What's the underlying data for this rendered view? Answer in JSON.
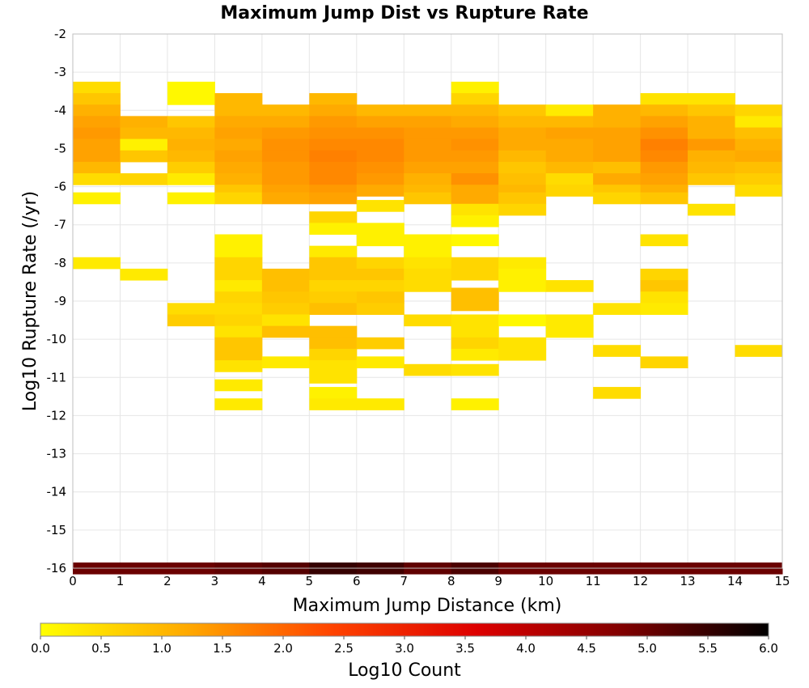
{
  "chart_data": {
    "type": "heatmap",
    "title": "Maximum Jump Dist vs Rupture Rate",
    "xlabel": "Maximum Jump Distance (km)",
    "ylabel": "Log10 Rupture Rate (/yr)",
    "xlim": [
      0,
      15
    ],
    "ylim": [
      -16,
      -2
    ],
    "x_ticks": [
      "0",
      "1",
      "2",
      "3",
      "4",
      "5",
      "6",
      "7",
      "8",
      "9",
      "10",
      "11",
      "12",
      "13",
      "14",
      "15"
    ],
    "y_ticks": [
      "-2",
      "-3",
      "-4",
      "-5",
      "-6",
      "-7",
      "-8",
      "-9",
      "-10",
      "-11",
      "-12",
      "-13",
      "-14",
      "-15",
      "-16"
    ],
    "bin_width_x": 1,
    "bin_height_y": 0.3,
    "grid": true,
    "colorbar": {
      "label": "Log10 Count",
      "range": [
        0,
        6
      ],
      "ticks": [
        "0.0",
        "0.5",
        "1.0",
        "1.5",
        "2.0",
        "2.5",
        "3.0",
        "3.5",
        "4.0",
        "4.5",
        "5.0",
        "5.5",
        "6.0"
      ],
      "colors": [
        "#ffff00",
        "#ffaa00",
        "#ff4400",
        "#dd0000",
        "#800000",
        "#000000"
      ]
    },
    "columns": [
      {
        "x": 0,
        "cells": [
          [
            -3.4,
            0.5
          ],
          [
            -3.7,
            0.8
          ],
          [
            -4.0,
            1.1
          ],
          [
            -4.3,
            1.3
          ],
          [
            -4.6,
            1.4
          ],
          [
            -4.9,
            1.3
          ],
          [
            -5.2,
            1.3
          ],
          [
            -5.5,
            1.0
          ],
          [
            -5.8,
            0.5
          ],
          [
            -6.3,
            0.2
          ],
          [
            -8.0,
            0.3
          ],
          [
            -16.0,
            5.0
          ]
        ]
      },
      {
        "x": 1,
        "cells": [
          [
            -4.3,
            1.1
          ],
          [
            -4.6,
            1.0
          ],
          [
            -4.9,
            0.2
          ],
          [
            -5.2,
            0.8
          ],
          [
            -5.8,
            0.6
          ],
          [
            -8.3,
            0.3
          ],
          [
            -16.0,
            5.0
          ]
        ]
      },
      {
        "x": 2,
        "cells": [
          [
            -3.4,
            0.1
          ],
          [
            -3.7,
            0.1
          ],
          [
            -4.3,
            0.8
          ],
          [
            -4.6,
            1.0
          ],
          [
            -4.9,
            1.1
          ],
          [
            -5.2,
            1.0
          ],
          [
            -5.5,
            0.7
          ],
          [
            -5.8,
            0.3
          ],
          [
            -6.3,
            0.2
          ],
          [
            -9.2,
            0.5
          ],
          [
            -9.5,
            0.7
          ],
          [
            -16.0,
            5.0
          ]
        ]
      },
      {
        "x": 3,
        "cells": [
          [
            -3.7,
            1.0
          ],
          [
            -4.0,
            1.0
          ],
          [
            -4.3,
            1.2
          ],
          [
            -4.6,
            1.3
          ],
          [
            -4.9,
            1.2
          ],
          [
            -5.2,
            1.3
          ],
          [
            -5.5,
            1.2
          ],
          [
            -5.8,
            1.1
          ],
          [
            -6.1,
            0.8
          ],
          [
            -6.3,
            0.6
          ],
          [
            -7.4,
            0.2
          ],
          [
            -7.7,
            0.2
          ],
          [
            -8.0,
            0.6
          ],
          [
            -8.3,
            0.6
          ],
          [
            -8.6,
            0.3
          ],
          [
            -8.9,
            0.6
          ],
          [
            -9.2,
            0.5
          ],
          [
            -9.5,
            0.6
          ],
          [
            -9.8,
            0.4
          ],
          [
            -10.1,
            0.8
          ],
          [
            -10.4,
            0.8
          ],
          [
            -10.7,
            0.4
          ],
          [
            -11.2,
            0.3
          ],
          [
            -11.7,
            0.3
          ],
          [
            -16.0,
            5.1
          ]
        ]
      },
      {
        "x": 4,
        "cells": [
          [
            -4.0,
            1.0
          ],
          [
            -4.3,
            1.2
          ],
          [
            -4.6,
            1.4
          ],
          [
            -4.9,
            1.5
          ],
          [
            -5.2,
            1.5
          ],
          [
            -5.5,
            1.4
          ],
          [
            -5.8,
            1.4
          ],
          [
            -6.1,
            1.3
          ],
          [
            -6.3,
            1.2
          ],
          [
            -8.3,
            0.9
          ],
          [
            -8.6,
            0.9
          ],
          [
            -8.9,
            0.8
          ],
          [
            -9.2,
            0.7
          ],
          [
            -9.5,
            0.4
          ],
          [
            -9.8,
            0.9
          ],
          [
            -10.6,
            0.3
          ],
          [
            -16.0,
            5.2
          ]
        ]
      },
      {
        "x": 5,
        "cells": [
          [
            -3.7,
            1.0
          ],
          [
            -4.0,
            1.2
          ],
          [
            -4.3,
            1.4
          ],
          [
            -4.6,
            1.5
          ],
          [
            -4.9,
            1.6
          ],
          [
            -5.2,
            1.7
          ],
          [
            -5.5,
            1.6
          ],
          [
            -5.8,
            1.6
          ],
          [
            -6.1,
            1.4
          ],
          [
            -6.3,
            1.3
          ],
          [
            -6.8,
            0.6
          ],
          [
            -7.1,
            0.2
          ],
          [
            -7.7,
            0.3
          ],
          [
            -8.0,
            0.8
          ],
          [
            -8.3,
            0.8
          ],
          [
            -8.6,
            0.6
          ],
          [
            -8.9,
            0.7
          ],
          [
            -9.2,
            0.9
          ],
          [
            -9.8,
            0.9
          ],
          [
            -10.1,
            0.9
          ],
          [
            -10.4,
            0.6
          ],
          [
            -10.7,
            0.4
          ],
          [
            -11.0,
            0.4
          ],
          [
            -11.4,
            0.2
          ],
          [
            -11.7,
            0.3
          ],
          [
            -16.0,
            5.5
          ]
        ]
      },
      {
        "x": 6,
        "cells": [
          [
            -4.0,
            1.0
          ],
          [
            -4.3,
            1.3
          ],
          [
            -4.6,
            1.5
          ],
          [
            -4.9,
            1.6
          ],
          [
            -5.2,
            1.6
          ],
          [
            -5.5,
            1.5
          ],
          [
            -5.8,
            1.4
          ],
          [
            -6.1,
            1.2
          ],
          [
            -6.5,
            0.4
          ],
          [
            -7.1,
            0.2
          ],
          [
            -7.4,
            0.2
          ],
          [
            -8.0,
            0.6
          ],
          [
            -8.3,
            0.8
          ],
          [
            -8.6,
            0.6
          ],
          [
            -8.9,
            0.8
          ],
          [
            -9.2,
            0.7
          ],
          [
            -10.1,
            0.7
          ],
          [
            -10.6,
            0.3
          ],
          [
            -11.7,
            0.3
          ],
          [
            -16.0,
            5.4
          ]
        ]
      },
      {
        "x": 7,
        "cells": [
          [
            -4.0,
            1.0
          ],
          [
            -4.3,
            1.3
          ],
          [
            -4.6,
            1.4
          ],
          [
            -4.9,
            1.4
          ],
          [
            -5.2,
            1.4
          ],
          [
            -5.5,
            1.3
          ],
          [
            -5.8,
            1.1
          ],
          [
            -6.1,
            1.0
          ],
          [
            -6.3,
            0.8
          ],
          [
            -7.4,
            0.2
          ],
          [
            -7.7,
            0.2
          ],
          [
            -8.0,
            0.4
          ],
          [
            -8.3,
            0.5
          ],
          [
            -8.6,
            0.5
          ],
          [
            -9.5,
            0.5
          ],
          [
            -10.8,
            0.5
          ],
          [
            -16.0,
            5.1
          ]
        ]
      },
      {
        "x": 8,
        "cells": [
          [
            -3.4,
            0.2
          ],
          [
            -3.7,
            0.6
          ],
          [
            -4.0,
            1.0
          ],
          [
            -4.3,
            1.2
          ],
          [
            -4.6,
            1.4
          ],
          [
            -4.9,
            1.5
          ],
          [
            -5.2,
            1.4
          ],
          [
            -5.5,
            1.3
          ],
          [
            -5.8,
            1.5
          ],
          [
            -6.1,
            1.2
          ],
          [
            -6.3,
            1.2
          ],
          [
            -6.6,
            0.4
          ],
          [
            -6.9,
            0.2
          ],
          [
            -7.4,
            0.1
          ],
          [
            -8.0,
            0.6
          ],
          [
            -8.3,
            0.6
          ],
          [
            -8.8,
            0.9
          ],
          [
            -9.1,
            0.9
          ],
          [
            -9.5,
            0.4
          ],
          [
            -9.8,
            0.4
          ],
          [
            -10.1,
            0.6
          ],
          [
            -10.4,
            0.3
          ],
          [
            -10.8,
            0.4
          ],
          [
            -11.7,
            0.2
          ],
          [
            -16.0,
            5.3
          ]
        ]
      },
      {
        "x": 9,
        "cells": [
          [
            -4.0,
            0.8
          ],
          [
            -4.3,
            1.0
          ],
          [
            -4.6,
            1.2
          ],
          [
            -4.9,
            1.2
          ],
          [
            -5.2,
            1.0
          ],
          [
            -5.5,
            0.8
          ],
          [
            -5.8,
            0.9
          ],
          [
            -6.1,
            1.0
          ],
          [
            -6.3,
            0.8
          ],
          [
            -6.6,
            0.6
          ],
          [
            -8.0,
            0.3
          ],
          [
            -8.3,
            0.2
          ],
          [
            -8.6,
            0.2
          ],
          [
            -9.5,
            0.1
          ],
          [
            -10.1,
            0.4
          ],
          [
            -10.4,
            0.4
          ],
          [
            -16.0,
            5.0
          ]
        ]
      },
      {
        "x": 10,
        "cells": [
          [
            -4.0,
            0.3
          ],
          [
            -4.3,
            1.0
          ],
          [
            -4.6,
            1.3
          ],
          [
            -4.9,
            1.2
          ],
          [
            -5.2,
            1.2
          ],
          [
            -5.5,
            1.0
          ],
          [
            -5.8,
            0.5
          ],
          [
            -6.1,
            0.6
          ],
          [
            -8.6,
            0.4
          ],
          [
            -9.5,
            0.3
          ],
          [
            -9.8,
            0.3
          ],
          [
            -16.0,
            5.0
          ]
        ]
      },
      {
        "x": 11,
        "cells": [
          [
            -4.0,
            1.1
          ],
          [
            -4.3,
            1.1
          ],
          [
            -4.6,
            1.3
          ],
          [
            -4.9,
            1.3
          ],
          [
            -5.2,
            1.3
          ],
          [
            -5.5,
            0.9
          ],
          [
            -5.8,
            1.2
          ],
          [
            -6.1,
            0.8
          ],
          [
            -6.3,
            0.6
          ],
          [
            -9.2,
            0.4
          ],
          [
            -10.3,
            0.5
          ],
          [
            -11.4,
            0.5
          ],
          [
            -16.0,
            5.0
          ]
        ]
      },
      {
        "x": 12,
        "cells": [
          [
            -3.7,
            0.4
          ],
          [
            -4.0,
            1.0
          ],
          [
            -4.3,
            1.3
          ],
          [
            -4.6,
            1.5
          ],
          [
            -4.9,
            1.7
          ],
          [
            -5.2,
            1.6
          ],
          [
            -5.5,
            1.4
          ],
          [
            -5.8,
            1.3
          ],
          [
            -6.1,
            1.1
          ],
          [
            -6.3,
            0.8
          ],
          [
            -7.4,
            0.4
          ],
          [
            -8.3,
            0.6
          ],
          [
            -8.6,
            0.8
          ],
          [
            -8.9,
            0.4
          ],
          [
            -9.2,
            0.3
          ],
          [
            -10.6,
            0.6
          ],
          [
            -16.0,
            5.0
          ]
        ]
      },
      {
        "x": 13,
        "cells": [
          [
            -3.7,
            0.4
          ],
          [
            -4.0,
            0.8
          ],
          [
            -4.3,
            1.1
          ],
          [
            -4.6,
            1.1
          ],
          [
            -4.9,
            1.4
          ],
          [
            -5.2,
            1.1
          ],
          [
            -5.5,
            1.0
          ],
          [
            -5.8,
            0.8
          ],
          [
            -6.6,
            0.4
          ],
          [
            -16.0,
            5.0
          ]
        ]
      },
      {
        "x": 14,
        "cells": [
          [
            -4.0,
            0.6
          ],
          [
            -4.3,
            0.3
          ],
          [
            -4.6,
            0.9
          ],
          [
            -4.9,
            1.1
          ],
          [
            -5.2,
            1.2
          ],
          [
            -5.5,
            0.9
          ],
          [
            -5.8,
            0.7
          ],
          [
            -6.1,
            0.5
          ],
          [
            -10.3,
            0.5
          ],
          [
            -16.0,
            5.0
          ]
        ]
      }
    ]
  }
}
